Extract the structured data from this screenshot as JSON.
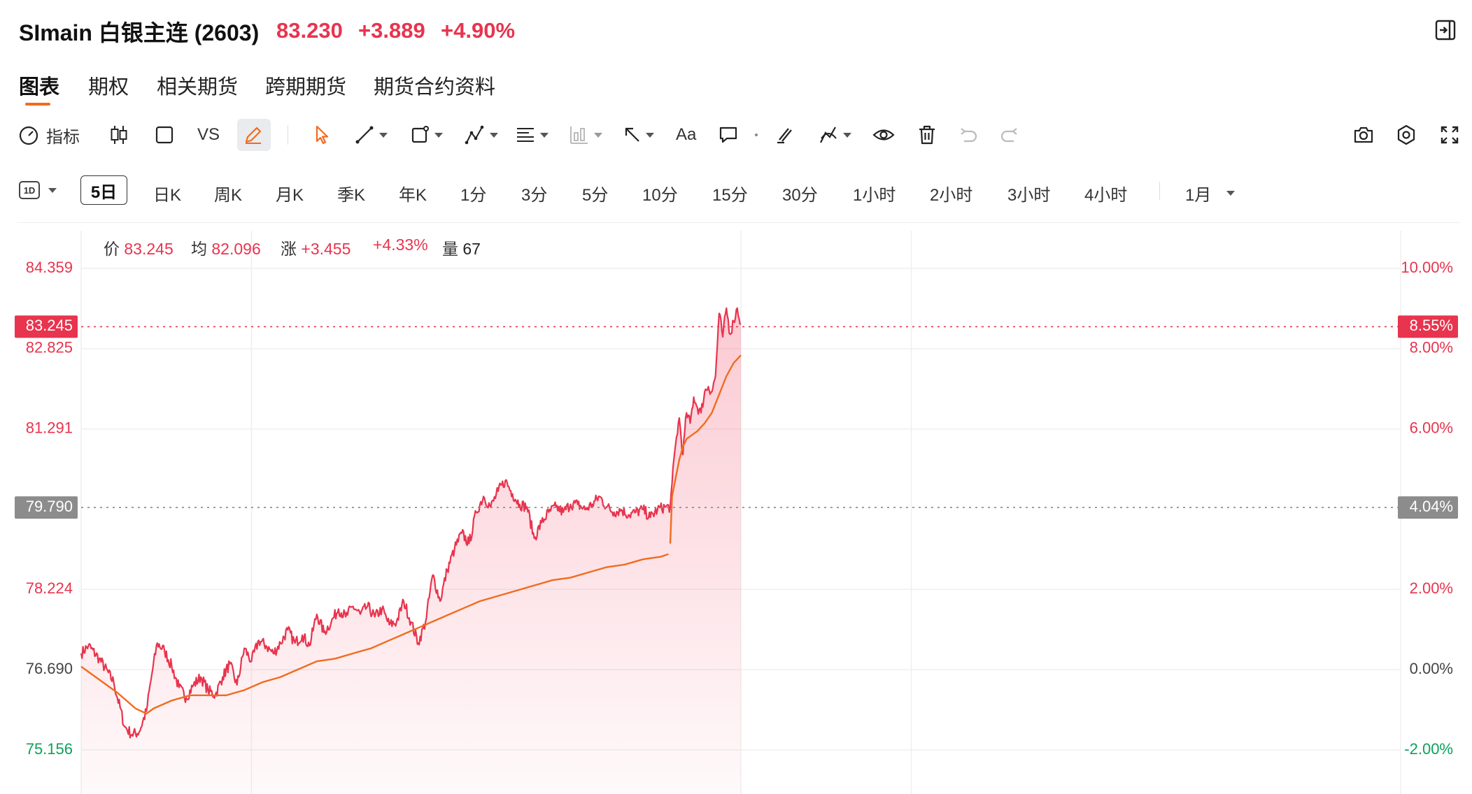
{
  "header": {
    "symbol": "SImain",
    "name": "白银主连",
    "code": "(2603)",
    "price": "83.230",
    "change": "+3.889",
    "change_pct": "+4.90%",
    "exit_icon": "exit-panel-icon"
  },
  "tabs": [
    {
      "label": "图表",
      "active": true
    },
    {
      "label": "期权"
    },
    {
      "label": "相关期货"
    },
    {
      "label": "跨期期货"
    },
    {
      "label": "期货合约资料"
    }
  ],
  "toolbar": {
    "indicators_label": "指标",
    "vs_label": "VS",
    "text_tool_label": "Aa",
    "icons": [
      "gauge-icon",
      "candlestick-icon",
      "square-icon",
      "pencil-icon",
      "cursor-arrow-icon",
      "trend-line-icon",
      "shape-icon",
      "pattern-icon",
      "fibonacci-icon",
      "volume-profile-icon",
      "arrow-icon",
      "text-icon",
      "comment-icon",
      "magnet-icon",
      "lock-drawing-icon",
      "eye-icon",
      "trash-icon",
      "undo-icon",
      "redo-icon",
      "camera-icon",
      "settings-icon",
      "fullscreen-icon"
    ]
  },
  "periods": {
    "interval_badge": "1D",
    "items": [
      "5日",
      "日K",
      "周K",
      "月K",
      "季K",
      "年K",
      "1分",
      "3分",
      "5分",
      "10分",
      "15分",
      "30分",
      "1小时",
      "2小时",
      "3小时",
      "4小时"
    ],
    "selected": "5日",
    "more_label": "1月"
  },
  "info_bar": {
    "price_label": "价",
    "price": "83.245",
    "avg_label": "均",
    "avg": "82.096",
    "chg_label": "涨",
    "chg": "+3.455",
    "chg_pct": "+4.33%",
    "vol_label": "量",
    "vol": "67"
  },
  "chart_data": {
    "type": "line",
    "title": "",
    "series": [
      {
        "name": "价",
        "color": "#e8344e"
      },
      {
        "name": "均",
        "color": "#f26b1d"
      }
    ],
    "left_axis_ticks": [
      "84.359",
      "82.825",
      "81.291",
      "79.790",
      "78.224",
      "76.690",
      "75.156"
    ],
    "left_axis_colors": [
      "#e8344e",
      "#e8344e",
      "#e8344e",
      "#ffffff",
      "#e8344e",
      "#444444",
      "#0aa35a"
    ],
    "right_axis_ticks": [
      "10.00%",
      "8.00%",
      "6.00%",
      "4.04%",
      "2.00%",
      "0.00%",
      "-2.00%"
    ],
    "right_axis_colors": [
      "#e8344e",
      "#e8344e",
      "#e8344e",
      "#ffffff",
      "#e8344e",
      "#444444",
      "#0aa35a"
    ],
    "current_price_label": "83.245",
    "current_pct_label": "8.55%",
    "prev_close_label": "79.790",
    "prev_close_pct_label": "4.04%",
    "ylim": [
      74.5,
      85.0
    ],
    "prev_close": 79.79,
    "price_path": [
      [
        0,
        77.0
      ],
      [
        2,
        77.15
      ],
      [
        5,
        76.9
      ],
      [
        9,
        76.45
      ],
      [
        12,
        75.6
      ],
      [
        14,
        75.45
      ],
      [
        16,
        75.5
      ],
      [
        18,
        75.9
      ],
      [
        19.5,
        76.6
      ],
      [
        21,
        77.2
      ],
      [
        23,
        77.05
      ],
      [
        25,
        76.75
      ],
      [
        27,
        76.35
      ],
      [
        29,
        76.15
      ],
      [
        31,
        76.4
      ],
      [
        33,
        76.55
      ],
      [
        35,
        76.3
      ],
      [
        37,
        76.2
      ],
      [
        39,
        76.55
      ],
      [
        41,
        76.8
      ],
      [
        43,
        76.4
      ],
      [
        45,
        77.1
      ],
      [
        47,
        76.85
      ],
      [
        49,
        77.25
      ],
      [
        51,
        77.15
      ],
      [
        53,
        77.0
      ],
      [
        55,
        77.2
      ],
      [
        57,
        77.45
      ],
      [
        59,
        77.2
      ],
      [
        61,
        77.35
      ],
      [
        63,
        77.15
      ],
      [
        65,
        77.75
      ],
      [
        67,
        77.4
      ],
      [
        69,
        77.6
      ],
      [
        71,
        77.85
      ],
      [
        73,
        77.7
      ],
      [
        75,
        77.9
      ],
      [
        77,
        77.75
      ],
      [
        79,
        77.9
      ],
      [
        81,
        77.7
      ],
      [
        83,
        77.85
      ],
      [
        85,
        77.55
      ],
      [
        87,
        77.6
      ],
      [
        89,
        78.0
      ],
      [
        91,
        77.6
      ],
      [
        93,
        77.2
      ],
      [
        95,
        77.6
      ],
      [
        97,
        78.5
      ],
      [
        99,
        78.0
      ],
      [
        101,
        78.6
      ],
      [
        103,
        79.0
      ],
      [
        105,
        79.3
      ],
      [
        107,
        79.1
      ],
      [
        109,
        79.7
      ],
      [
        111,
        80.0
      ],
      [
        113,
        79.8
      ],
      [
        115,
        80.1
      ],
      [
        117,
        80.3
      ],
      [
        119,
        80.05
      ],
      [
        121,
        79.85
      ],
      [
        123,
        79.8
      ],
      [
        125,
        79.2
      ],
      [
        127,
        79.5
      ],
      [
        129,
        79.7
      ],
      [
        131,
        79.8
      ],
      [
        133,
        79.7
      ],
      [
        135,
        79.85
      ],
      [
        137,
        79.85
      ],
      [
        139,
        79.75
      ],
      [
        141,
        79.85
      ],
      [
        143,
        80.0
      ],
      [
        145,
        79.8
      ],
      [
        147,
        79.7
      ],
      [
        149,
        79.75
      ],
      [
        151,
        79.65
      ],
      [
        153,
        79.7
      ],
      [
        155,
        79.75
      ],
      [
        157,
        79.6
      ],
      [
        159,
        79.75
      ],
      [
        161,
        79.8
      ],
      [
        162.5,
        79.8
      ],
      [
        163,
        80.25
      ],
      [
        164,
        81.0
      ],
      [
        165,
        81.5
      ],
      [
        166,
        80.8
      ],
      [
        167,
        81.6
      ],
      [
        168,
        81.4
      ],
      [
        169,
        81.9
      ],
      [
        170,
        81.7
      ],
      [
        171,
        81.6
      ],
      [
        172,
        82.0
      ],
      [
        173,
        82.1
      ],
      [
        174,
        82.0
      ],
      [
        175,
        82.3
      ],
      [
        176,
        83.5
      ],
      [
        177,
        83.05
      ],
      [
        178,
        83.6
      ],
      [
        179,
        83.1
      ],
      [
        180,
        83.35
      ],
      [
        181,
        83.6
      ],
      [
        182,
        83.3
      ]
    ],
    "avg_path": [
      [
        0,
        76.75
      ],
      [
        5,
        76.5
      ],
      [
        10,
        76.25
      ],
      [
        15,
        75.95
      ],
      [
        18,
        75.85
      ],
      [
        20,
        75.95
      ],
      [
        25,
        76.1
      ],
      [
        30,
        76.2
      ],
      [
        35,
        76.2
      ],
      [
        40,
        76.2
      ],
      [
        45,
        76.3
      ],
      [
        50,
        76.45
      ],
      [
        55,
        76.55
      ],
      [
        60,
        76.7
      ],
      [
        65,
        76.85
      ],
      [
        70,
        76.9
      ],
      [
        75,
        77.0
      ],
      [
        80,
        77.1
      ],
      [
        85,
        77.25
      ],
      [
        90,
        77.4
      ],
      [
        95,
        77.55
      ],
      [
        100,
        77.7
      ],
      [
        105,
        77.85
      ],
      [
        110,
        78.0
      ],
      [
        115,
        78.1
      ],
      [
        120,
        78.2
      ],
      [
        125,
        78.3
      ],
      [
        130,
        78.4
      ],
      [
        135,
        78.45
      ],
      [
        140,
        78.55
      ],
      [
        145,
        78.65
      ],
      [
        150,
        78.7
      ],
      [
        155,
        78.8
      ],
      [
        160,
        78.85
      ],
      [
        162,
        78.9
      ]
    ],
    "avg_path_2": [
      [
        162.5,
        79.1
      ],
      [
        163,
        80.0
      ],
      [
        164,
        80.35
      ],
      [
        165,
        80.7
      ],
      [
        166,
        80.95
      ],
      [
        167,
        81.1
      ],
      [
        168,
        81.15
      ],
      [
        170,
        81.25
      ],
      [
        172,
        81.4
      ],
      [
        174,
        81.6
      ],
      [
        176,
        81.95
      ],
      [
        178,
        82.3
      ],
      [
        180,
        82.55
      ],
      [
        182,
        82.7
      ]
    ],
    "x_range": [
      0,
      364
    ],
    "grid": true,
    "grid_lines_x": [
      0,
      47,
      182,
      229,
      364
    ]
  }
}
